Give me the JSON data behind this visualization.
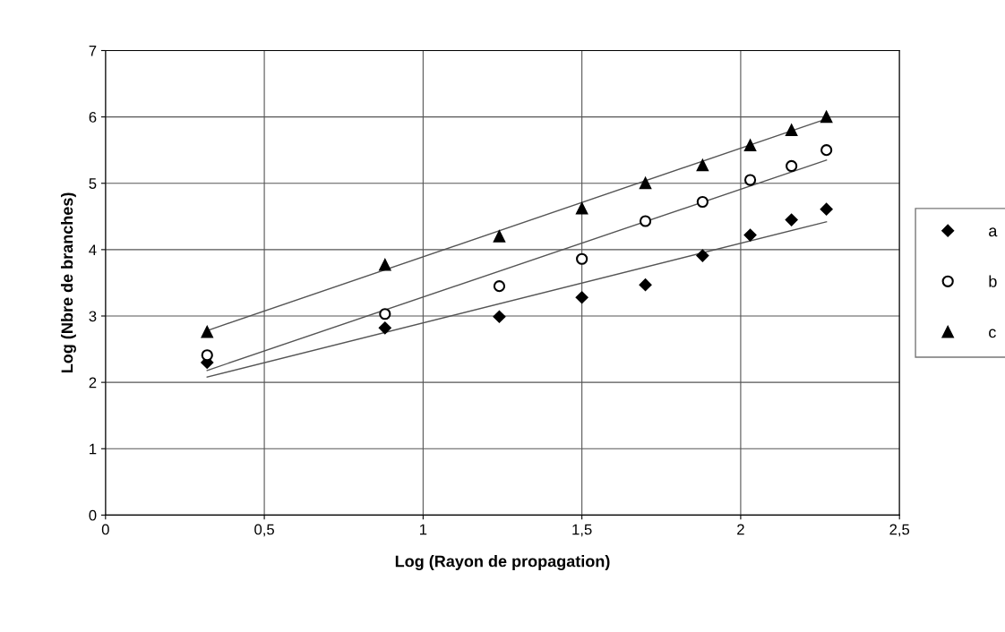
{
  "chart_data": {
    "type": "scatter",
    "xlabel": "Log (Rayon de propagation)",
    "ylabel": "Log (Nbre de branches)",
    "xlim": [
      0,
      2.5
    ],
    "xticks": [
      0,
      {
        "value": 0.5,
        "label": "0,5"
      },
      1,
      {
        "value": 1.5,
        "label": "1,5"
      },
      2,
      {
        "value": 2.5,
        "label": "2,5"
      }
    ],
    "ylim": [
      0,
      7
    ],
    "yticks": [
      0,
      1,
      2,
      3,
      4,
      5,
      6,
      7
    ],
    "grid": true,
    "legend": "right",
    "series": [
      {
        "name": "a",
        "color": "#000000",
        "marker": "diamond",
        "x": [
          0.32,
          0.88,
          1.24,
          1.5,
          1.7,
          1.88,
          2.03,
          2.16,
          2.27
        ],
        "values": [
          2.3,
          2.82,
          2.99,
          3.28,
          3.47,
          3.91,
          4.22,
          4.45,
          4.61
        ]
      },
      {
        "name": "b",
        "color": "#000000",
        "marker": "circle",
        "x": [
          0.32,
          0.88,
          1.24,
          1.5,
          1.7,
          1.88,
          2.03,
          2.16,
          2.27
        ],
        "values": [
          2.41,
          3.03,
          3.45,
          3.86,
          4.43,
          4.72,
          5.05,
          5.26,
          5.5
        ]
      },
      {
        "name": "c",
        "color": "#000000",
        "marker": "triangle",
        "x": [
          0.32,
          0.88,
          1.24,
          1.5,
          1.7,
          1.88,
          2.03,
          2.16,
          2.27
        ],
        "values": [
          2.76,
          3.77,
          4.2,
          4.62,
          5.0,
          5.27,
          5.57,
          5.8,
          6.0
        ]
      },
      {
        "type": "line",
        "color": "#555555",
        "marker": "none",
        "x": [
          0.32,
          2.27
        ],
        "values": [
          2.08,
          4.42
        ]
      },
      {
        "type": "line",
        "color": "#555555",
        "marker": "none",
        "x": [
          0.32,
          2.27
        ],
        "values": [
          2.18,
          5.35
        ]
      },
      {
        "type": "line",
        "color": "#555555",
        "marker": "none",
        "x": [
          0.32,
          2.27
        ],
        "values": [
          2.78,
          5.97
        ]
      }
    ]
  }
}
